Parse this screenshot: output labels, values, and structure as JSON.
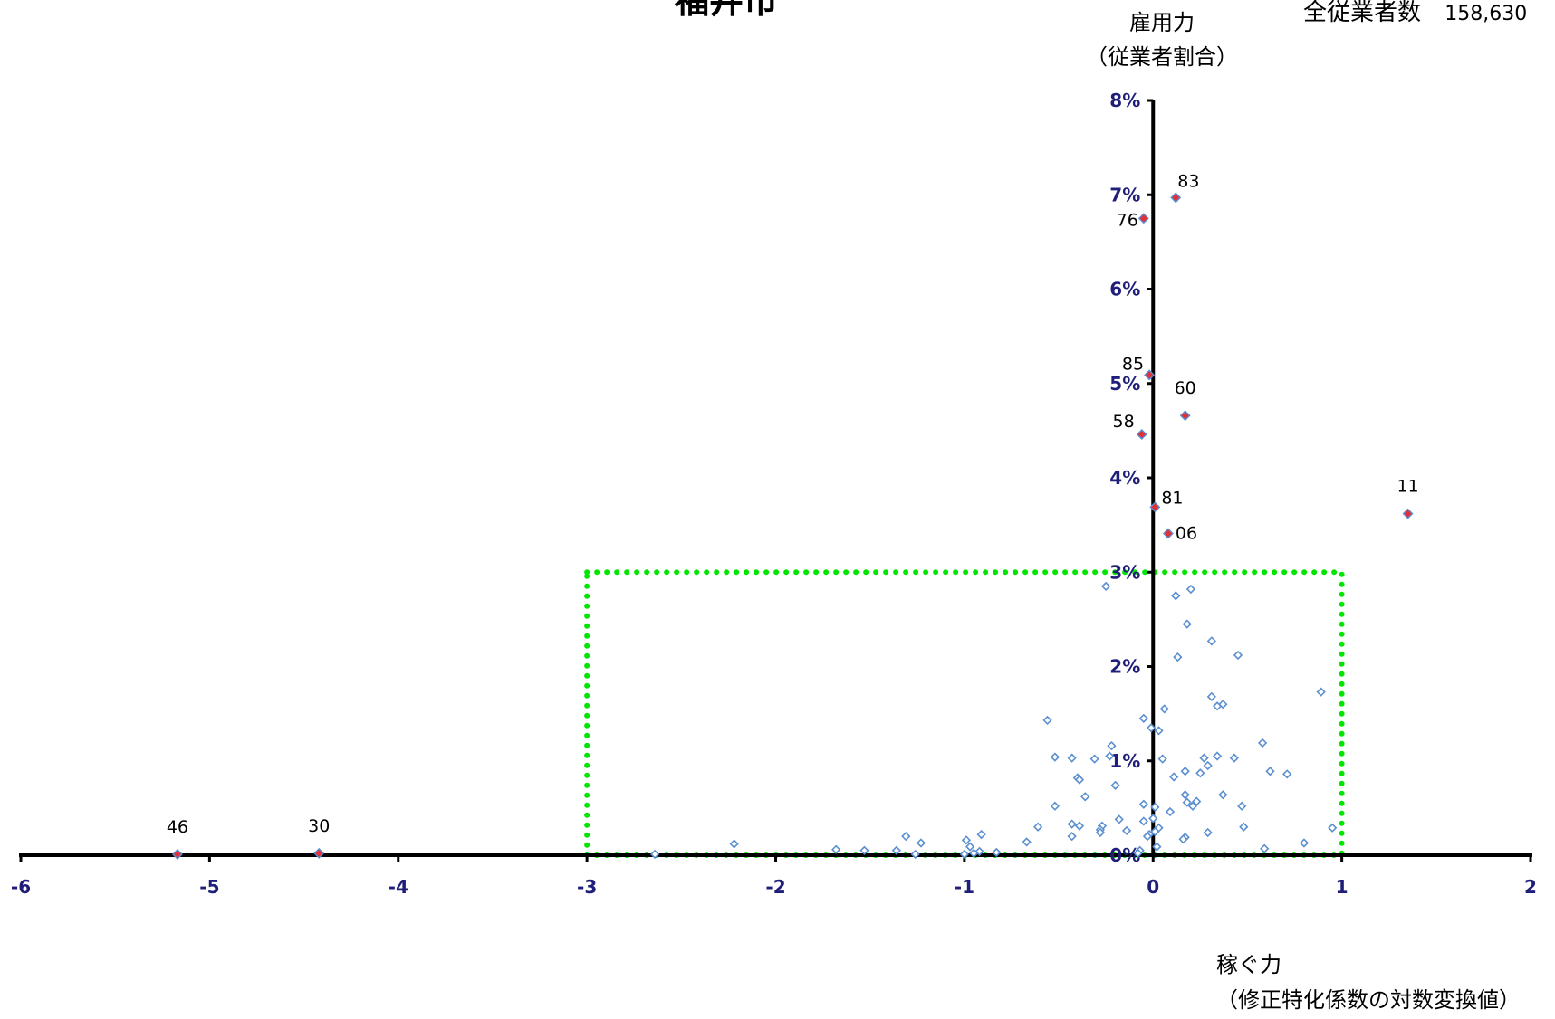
{
  "chart_data": {
    "type": "scatter",
    "title": "福井市",
    "total_workers": {
      "label": "全従業者数",
      "value": "158,630"
    },
    "ylabel_line1": "雇用力",
    "ylabel_line2": "（従業者割合）",
    "xlabel_line1": "稼ぐ力",
    "xlabel_line2": "（修正特化係数の対数変換値）",
    "xlim": [
      -6,
      2
    ],
    "ylim": [
      0,
      8
    ],
    "x_ticks": [
      "-6",
      "-5",
      "-4",
      "-3",
      "-2",
      "-1",
      "0",
      "1",
      "2"
    ],
    "y_ticks": [
      "0%",
      "1%",
      "2%",
      "3%",
      "4%",
      "5%",
      "6%",
      "7%",
      "8%"
    ],
    "grid": false,
    "reference_box": {
      "x_range": [
        -3,
        1
      ],
      "y_range": [
        0,
        3
      ],
      "color": "#00E600",
      "style": "dotted"
    },
    "highlight_color": "#E0303A",
    "marker_color": "#5B8FD0",
    "highlighted_points": [
      {
        "label": "83",
        "x": 0.12,
        "y": 6.97
      },
      {
        "label": "76",
        "x": -0.05,
        "y": 6.75
      },
      {
        "label": "85",
        "x": -0.02,
        "y": 5.09
      },
      {
        "label": "60",
        "x": 0.17,
        "y": 4.66
      },
      {
        "label": "58",
        "x": -0.06,
        "y": 4.46
      },
      {
        "label": "81",
        "x": 0.01,
        "y": 3.69
      },
      {
        "label": "06",
        "x": 0.08,
        "y": 3.41
      },
      {
        "label": "11",
        "x": 1.35,
        "y": 3.62
      },
      {
        "label": "46",
        "x": -5.17,
        "y": 0.01
      },
      {
        "label": "30",
        "x": -4.42,
        "y": 0.02
      }
    ],
    "other_points": [
      {
        "x": -0.25,
        "y": 2.85
      },
      {
        "x": 0.2,
        "y": 2.82
      },
      {
        "x": 0.12,
        "y": 2.75
      },
      {
        "x": 0.18,
        "y": 2.45
      },
      {
        "x": 0.31,
        "y": 2.27
      },
      {
        "x": 0.45,
        "y": 2.12
      },
      {
        "x": 0.13,
        "y": 2.1
      },
      {
        "x": 0.89,
        "y": 1.73
      },
      {
        "x": 0.31,
        "y": 1.68
      },
      {
        "x": 0.34,
        "y": 1.58
      },
      {
        "x": 0.37,
        "y": 1.6
      },
      {
        "x": 0.06,
        "y": 1.55
      },
      {
        "x": -0.05,
        "y": 1.45
      },
      {
        "x": -0.56,
        "y": 1.43
      },
      {
        "x": 0.03,
        "y": 1.32
      },
      {
        "x": -0.01,
        "y": 1.35
      },
      {
        "x": 0.58,
        "y": 1.19
      },
      {
        "x": -0.22,
        "y": 1.16
      },
      {
        "x": -0.52,
        "y": 1.04
      },
      {
        "x": -0.43,
        "y": 1.03
      },
      {
        "x": -0.31,
        "y": 1.02
      },
      {
        "x": -0.23,
        "y": 1.05
      },
      {
        "x": 0.05,
        "y": 1.02
      },
      {
        "x": 0.27,
        "y": 1.03
      },
      {
        "x": 0.34,
        "y": 1.05
      },
      {
        "x": 0.43,
        "y": 1.03
      },
      {
        "x": 0.29,
        "y": 0.95
      },
      {
        "x": 0.17,
        "y": 0.89
      },
      {
        "x": 0.62,
        "y": 0.89
      },
      {
        "x": 0.71,
        "y": 0.86
      },
      {
        "x": 0.11,
        "y": 0.83
      },
      {
        "x": 0.25,
        "y": 0.87
      },
      {
        "x": -0.4,
        "y": 0.82
      },
      {
        "x": -0.39,
        "y": 0.8
      },
      {
        "x": -0.2,
        "y": 0.74
      },
      {
        "x": -0.36,
        "y": 0.62
      },
      {
        "x": 0.17,
        "y": 0.64
      },
      {
        "x": 0.37,
        "y": 0.64
      },
      {
        "x": 0.18,
        "y": 0.56
      },
      {
        "x": 0.23,
        "y": 0.57
      },
      {
        "x": 0.21,
        "y": 0.52
      },
      {
        "x": 0.47,
        "y": 0.52
      },
      {
        "x": -0.52,
        "y": 0.52
      },
      {
        "x": -0.05,
        "y": 0.54
      },
      {
        "x": 0.01,
        "y": 0.51
      },
      {
        "x": 0.09,
        "y": 0.46
      },
      {
        "x": -0.18,
        "y": 0.38
      },
      {
        "x": -0.05,
        "y": 0.36
      },
      {
        "x": 0.0,
        "y": 0.39
      },
      {
        "x": -0.43,
        "y": 0.33
      },
      {
        "x": -0.39,
        "y": 0.31
      },
      {
        "x": -0.27,
        "y": 0.31
      },
      {
        "x": -0.14,
        "y": 0.26
      },
      {
        "x": -0.28,
        "y": 0.27
      },
      {
        "x": -0.61,
        "y": 0.3
      },
      {
        "x": -0.28,
        "y": 0.24
      },
      {
        "x": 0.48,
        "y": 0.3
      },
      {
        "x": 0.95,
        "y": 0.29
      },
      {
        "x": 0.29,
        "y": 0.24
      },
      {
        "x": 0.03,
        "y": 0.29
      },
      {
        "x": 0.01,
        "y": 0.25
      },
      {
        "x": -0.02,
        "y": 0.22
      },
      {
        "x": -0.03,
        "y": 0.2
      },
      {
        "x": -1.31,
        "y": 0.2
      },
      {
        "x": -0.91,
        "y": 0.22
      },
      {
        "x": -0.43,
        "y": 0.2
      },
      {
        "x": 0.17,
        "y": 0.19
      },
      {
        "x": 0.16,
        "y": 0.17
      },
      {
        "x": -0.67,
        "y": 0.14
      },
      {
        "x": -2.22,
        "y": 0.12
      },
      {
        "x": -1.23,
        "y": 0.13
      },
      {
        "x": -0.99,
        "y": 0.16
      },
      {
        "x": -0.97,
        "y": 0.09
      },
      {
        "x": 0.8,
        "y": 0.13
      },
      {
        "x": 0.02,
        "y": 0.09
      },
      {
        "x": 0.59,
        "y": 0.07
      },
      {
        "x": -1.68,
        "y": 0.06
      },
      {
        "x": -1.53,
        "y": 0.05
      },
      {
        "x": -1.36,
        "y": 0.05
      },
      {
        "x": -0.92,
        "y": 0.04
      },
      {
        "x": -0.83,
        "y": 0.03
      },
      {
        "x": -0.07,
        "y": 0.05
      },
      {
        "x": -0.95,
        "y": 0.02
      },
      {
        "x": -1.26,
        "y": 0.01
      },
      {
        "x": -2.64,
        "y": 0.01
      },
      {
        "x": -1.0,
        "y": 0.01
      },
      {
        "x": -0.08,
        "y": 0.02
      }
    ]
  }
}
